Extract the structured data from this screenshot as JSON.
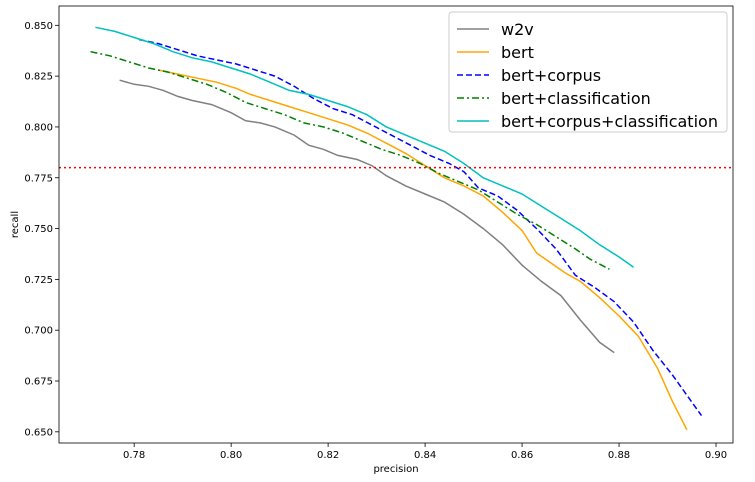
{
  "chart_data": {
    "type": "line",
    "title": "",
    "xlabel": "precision",
    "ylabel": "recall",
    "xlim": [
      0.7645,
      0.9035
    ],
    "ylim": [
      0.6445,
      0.8595
    ],
    "x_ticks": [
      {
        "value": 0.78,
        "label": "0.78"
      },
      {
        "value": 0.8,
        "label": "0.80"
      },
      {
        "value": 0.82,
        "label": "0.82"
      },
      {
        "value": 0.84,
        "label": "0.84"
      },
      {
        "value": 0.86,
        "label": "0.86"
      },
      {
        "value": 0.88,
        "label": "0.88"
      },
      {
        "value": 0.9,
        "label": "0.90"
      }
    ],
    "y_ticks": [
      {
        "value": 0.65,
        "label": "0.650"
      },
      {
        "value": 0.675,
        "label": "0.675"
      },
      {
        "value": 0.7,
        "label": "0.700"
      },
      {
        "value": 0.725,
        "label": "0.725"
      },
      {
        "value": 0.75,
        "label": "0.750"
      },
      {
        "value": 0.775,
        "label": "0.775"
      },
      {
        "value": 0.8,
        "label": "0.800"
      },
      {
        "value": 0.825,
        "label": "0.825"
      },
      {
        "value": 0.85,
        "label": "0.850"
      }
    ],
    "grid": false,
    "legend_position": "top-right",
    "reference_line": {
      "y": 0.78,
      "color": "#ff0000",
      "style": "dotted"
    },
    "series": [
      {
        "name": "w2v",
        "color": "#808080",
        "dash": "solid",
        "points": [
          [
            0.777,
            0.823
          ],
          [
            0.78,
            0.821
          ],
          [
            0.783,
            0.82
          ],
          [
            0.786,
            0.818
          ],
          [
            0.789,
            0.815
          ],
          [
            0.792,
            0.813
          ],
          [
            0.796,
            0.811
          ],
          [
            0.8,
            0.807
          ],
          [
            0.803,
            0.803
          ],
          [
            0.806,
            0.802
          ],
          [
            0.809,
            0.8
          ],
          [
            0.813,
            0.796
          ],
          [
            0.816,
            0.791
          ],
          [
            0.819,
            0.789
          ],
          [
            0.822,
            0.786
          ],
          [
            0.826,
            0.784
          ],
          [
            0.829,
            0.781
          ],
          [
            0.832,
            0.776
          ],
          [
            0.836,
            0.771
          ],
          [
            0.84,
            0.767
          ],
          [
            0.844,
            0.763
          ],
          [
            0.848,
            0.757
          ],
          [
            0.852,
            0.75
          ],
          [
            0.856,
            0.742
          ],
          [
            0.86,
            0.732
          ],
          [
            0.864,
            0.724
          ],
          [
            0.868,
            0.717
          ],
          [
            0.872,
            0.705
          ],
          [
            0.876,
            0.694
          ],
          [
            0.879,
            0.689
          ]
        ]
      },
      {
        "name": "bert",
        "color": "#ffa500",
        "dash": "solid",
        "points": [
          [
            0.785,
            0.828
          ],
          [
            0.789,
            0.826
          ],
          [
            0.793,
            0.824
          ],
          [
            0.797,
            0.822
          ],
          [
            0.801,
            0.819
          ],
          [
            0.804,
            0.816
          ],
          [
            0.808,
            0.813
          ],
          [
            0.812,
            0.81
          ],
          [
            0.816,
            0.807
          ],
          [
            0.82,
            0.804
          ],
          [
            0.824,
            0.801
          ],
          [
            0.828,
            0.797
          ],
          [
            0.832,
            0.792
          ],
          [
            0.836,
            0.787
          ],
          [
            0.84,
            0.781
          ],
          [
            0.844,
            0.775
          ],
          [
            0.848,
            0.771
          ],
          [
            0.852,
            0.766
          ],
          [
            0.856,
            0.758
          ],
          [
            0.86,
            0.749
          ],
          [
            0.863,
            0.738
          ],
          [
            0.866,
            0.733
          ],
          [
            0.869,
            0.728
          ],
          [
            0.872,
            0.724
          ],
          [
            0.876,
            0.716
          ],
          [
            0.88,
            0.707
          ],
          [
            0.884,
            0.697
          ],
          [
            0.888,
            0.681
          ],
          [
            0.891,
            0.665
          ],
          [
            0.894,
            0.651
          ]
        ]
      },
      {
        "name": "bert+corpus",
        "color": "#0000ff",
        "dash": "dashed",
        "points": [
          [
            0.781,
            0.843
          ],
          [
            0.785,
            0.841
          ],
          [
            0.789,
            0.838
          ],
          [
            0.793,
            0.835
          ],
          [
            0.797,
            0.833
          ],
          [
            0.801,
            0.831
          ],
          [
            0.805,
            0.828
          ],
          [
            0.809,
            0.825
          ],
          [
            0.813,
            0.82
          ],
          [
            0.817,
            0.814
          ],
          [
            0.821,
            0.809
          ],
          [
            0.825,
            0.806
          ],
          [
            0.829,
            0.801
          ],
          [
            0.833,
            0.796
          ],
          [
            0.837,
            0.791
          ],
          [
            0.841,
            0.786
          ],
          [
            0.845,
            0.782
          ],
          [
            0.848,
            0.778
          ],
          [
            0.851,
            0.77
          ],
          [
            0.855,
            0.766
          ],
          [
            0.859,
            0.759
          ],
          [
            0.863,
            0.75
          ],
          [
            0.867,
            0.74
          ],
          [
            0.871,
            0.727
          ],
          [
            0.875,
            0.721
          ],
          [
            0.879,
            0.714
          ],
          [
            0.883,
            0.704
          ],
          [
            0.887,
            0.69
          ],
          [
            0.891,
            0.678
          ],
          [
            0.894,
            0.668
          ],
          [
            0.897,
            0.658
          ]
        ]
      },
      {
        "name": "bert+classification",
        "color": "#008000",
        "dash": "dashdot",
        "points": [
          [
            0.771,
            0.837
          ],
          [
            0.775,
            0.835
          ],
          [
            0.779,
            0.832
          ],
          [
            0.783,
            0.829
          ],
          [
            0.787,
            0.827
          ],
          [
            0.791,
            0.824
          ],
          [
            0.795,
            0.821
          ],
          [
            0.799,
            0.817
          ],
          [
            0.803,
            0.812
          ],
          [
            0.807,
            0.809
          ],
          [
            0.811,
            0.806
          ],
          [
            0.815,
            0.802
          ],
          [
            0.819,
            0.8
          ],
          [
            0.823,
            0.797
          ],
          [
            0.827,
            0.793
          ],
          [
            0.831,
            0.789
          ],
          [
            0.835,
            0.786
          ],
          [
            0.839,
            0.782
          ],
          [
            0.843,
            0.777
          ],
          [
            0.847,
            0.773
          ],
          [
            0.851,
            0.769
          ],
          [
            0.855,
            0.763
          ],
          [
            0.859,
            0.757
          ],
          [
            0.863,
            0.752
          ],
          [
            0.867,
            0.746
          ],
          [
            0.871,
            0.74
          ],
          [
            0.874,
            0.735
          ],
          [
            0.878,
            0.73
          ]
        ]
      },
      {
        "name": "bert+corpus+classification",
        "color": "#00c0c0",
        "dash": "solid",
        "points": [
          [
            0.772,
            0.849
          ],
          [
            0.776,
            0.847
          ],
          [
            0.78,
            0.844
          ],
          [
            0.784,
            0.841
          ],
          [
            0.788,
            0.837
          ],
          [
            0.792,
            0.834
          ],
          [
            0.796,
            0.832
          ],
          [
            0.8,
            0.829
          ],
          [
            0.804,
            0.826
          ],
          [
            0.808,
            0.822
          ],
          [
            0.812,
            0.818
          ],
          [
            0.816,
            0.816
          ],
          [
            0.82,
            0.813
          ],
          [
            0.824,
            0.81
          ],
          [
            0.828,
            0.806
          ],
          [
            0.832,
            0.8
          ],
          [
            0.836,
            0.796
          ],
          [
            0.84,
            0.792
          ],
          [
            0.844,
            0.788
          ],
          [
            0.848,
            0.782
          ],
          [
            0.852,
            0.775
          ],
          [
            0.856,
            0.771
          ],
          [
            0.86,
            0.767
          ],
          [
            0.864,
            0.761
          ],
          [
            0.868,
            0.755
          ],
          [
            0.872,
            0.749
          ],
          [
            0.876,
            0.742
          ],
          [
            0.88,
            0.736
          ],
          [
            0.883,
            0.731
          ]
        ]
      }
    ]
  }
}
